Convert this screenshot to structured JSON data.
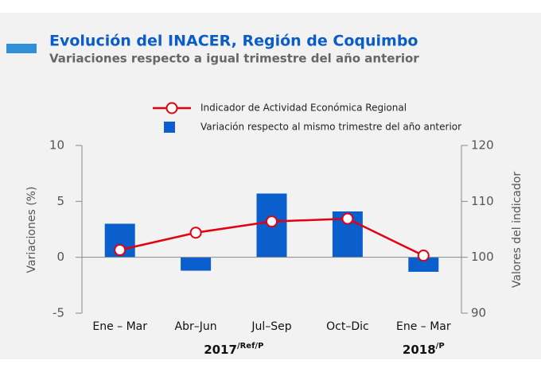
{
  "chart_data": {
    "type": "bar_line",
    "title": "Evolución del INACER, Región de Coquimbo",
    "subtitle": "Variaciones respecto a igual trimestre del año anterior",
    "categories": [
      "Ene – Mar",
      "Abr–Jun",
      "Jul–Sep",
      "Oct–Dic",
      "Ene – Mar"
    ],
    "groups": [
      {
        "label": "2017",
        "note": "/Ref/P",
        "from": 0,
        "to": 3
      },
      {
        "label": "2018",
        "note": "/P",
        "from": 4,
        "to": 4
      }
    ],
    "series": [
      {
        "name": "Variación respecto al mismo trimestre del año anterior",
        "type": "bar",
        "color": "#0a5fcc",
        "values": [
          3.0,
          -1.2,
          5.7,
          4.1,
          -1.3
        ]
      },
      {
        "name": "Indicador de Actividad Económica Regional",
        "type": "line",
        "axis": "y2",
        "color": "#e3000f",
        "values": [
          101.3,
          104.4,
          106.4,
          106.9,
          100.3
        ]
      }
    ],
    "ylabel": "Variaciones (%)",
    "y2label": "Valores del indicador",
    "ylim": [
      -5,
      10
    ],
    "yticks": [
      -5,
      0,
      5,
      10
    ],
    "y2lim": [
      90,
      120
    ],
    "y2ticks": [
      90,
      100,
      110,
      120
    ]
  }
}
